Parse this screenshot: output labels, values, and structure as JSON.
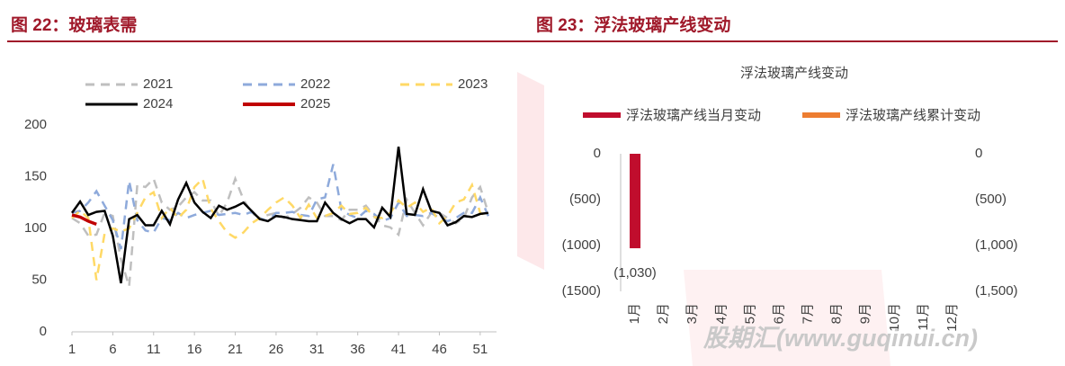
{
  "figure_captions": [
    "图 22：玻璃表需",
    "图 23：浮法玻璃产线变动"
  ],
  "watermark": "股期汇(www.guqinui.cn)",
  "chart_data": [
    {
      "type": "line",
      "legend": "top",
      "grid": false,
      "x": [
        1,
        2,
        3,
        4,
        5,
        6,
        7,
        8,
        9,
        10,
        11,
        12,
        13,
        14,
        15,
        16,
        17,
        18,
        19,
        20,
        21,
        22,
        23,
        24,
        25,
        26,
        27,
        28,
        29,
        30,
        31,
        32,
        33,
        34,
        35,
        36,
        37,
        38,
        39,
        40,
        41,
        42,
        43,
        44,
        45,
        46,
        47,
        48,
        49,
        50,
        51,
        52
      ],
      "xlim": [
        1,
        53
      ],
      "xticks": [
        1,
        6,
        11,
        16,
        21,
        26,
        31,
        36,
        41,
        46,
        51
      ],
      "ylim": [
        0,
        200
      ],
      "yticks": [
        0,
        50,
        100,
        150,
        200
      ],
      "series": [
        {
          "name": "2021",
          "color": "#bfbfbf",
          "style": "dashed",
          "values": [
            110,
            105,
            93,
            94,
            115,
            112,
            70,
            44,
            142,
            140,
            148,
            125,
            118,
            121,
            130,
            135,
            127,
            127,
            112,
            125,
            148,
            128,
            115,
            110,
            113,
            115,
            110,
            114,
            120,
            130,
            125,
            112,
            112,
            108,
            118,
            118,
            122,
            112,
            103,
            101,
            94,
            128,
            115,
            103,
            115,
            115,
            110,
            105,
            110,
            130,
            140,
            115
          ]
        },
        {
          "name": "2022",
          "color": "#8eaadb",
          "style": "dashed",
          "values": [
            115,
            117,
            125,
            136,
            122,
            108,
            80,
            146,
            108,
            98,
            96,
            110,
            108,
            115,
            110,
            113,
            115,
            117,
            113,
            114,
            115,
            113,
            116,
            110,
            107,
            115,
            115,
            116,
            113,
            112,
            128,
            130,
            162,
            118,
            113,
            110,
            117,
            114,
            107,
            110,
            125,
            112,
            113,
            112,
            115,
            110,
            107,
            110,
            115,
            115,
            130,
            112
          ]
        },
        {
          "name": "2023",
          "color": "#ffd966",
          "style": "dashed",
          "values": [
            110,
            117,
            110,
            50,
            95,
            100,
            97,
            100,
            115,
            130,
            135,
            110,
            120,
            110,
            118,
            140,
            148,
            119,
            107,
            96,
            91,
            96,
            105,
            110,
            118,
            125,
            130,
            122,
            110,
            123,
            110,
            112,
            115,
            122,
            114,
            115,
            120,
            111,
            110,
            115,
            127,
            120,
            125,
            116,
            120,
            105,
            112,
            125,
            128,
            142,
            115,
            112
          ]
        },
        {
          "name": "2024",
          "color": "#000000",
          "style": "solid",
          "values": [
            115,
            126,
            113,
            116,
            117,
            93,
            47,
            109,
            113,
            103,
            103,
            117,
            104,
            128,
            144,
            125,
            116,
            110,
            122,
            118,
            121,
            125,
            117,
            109,
            107,
            112,
            111,
            109,
            108,
            107,
            107,
            125,
            115,
            109,
            105,
            109,
            109,
            101,
            120,
            111,
            179,
            114,
            113,
            138,
            117,
            115,
            103,
            106,
            112,
            111,
            114,
            115
          ]
        },
        {
          "name": "2025",
          "color": "#c00000",
          "style": "solid",
          "values": [
            113,
            111,
            107,
            104,
            null,
            null,
            null,
            null,
            null,
            null,
            null,
            null,
            null,
            null,
            null,
            null,
            null,
            null,
            null,
            null,
            null,
            null,
            null,
            null,
            null,
            null,
            null,
            null,
            null,
            null,
            null,
            null,
            null,
            null,
            null,
            null,
            null,
            null,
            null,
            null,
            null,
            null,
            null,
            null,
            null,
            null,
            null,
            null,
            null,
            null,
            null,
            null
          ]
        }
      ]
    },
    {
      "type": "bar",
      "title": "浮法玻璃产线变动",
      "legend": "top",
      "categories": [
        "1月",
        "2月",
        "3月",
        "4月",
        "5月",
        "6月",
        "7月",
        "8月",
        "9月",
        "10月",
        "11月",
        "12月"
      ],
      "ylim": [
        -1500,
        0
      ],
      "yticks": [
        0,
        {
          "value": -500,
          "label": "(500)"
        },
        {
          "value": -1000,
          "label": "(1000)"
        },
        {
          "value": -1500,
          "label": "(1500)"
        }
      ],
      "y2lim": [
        -1500,
        0
      ],
      "y2ticks": [
        0,
        {
          "value": -500,
          "label": "(500)"
        },
        {
          "value": -1000,
          "label": "(1,000)"
        },
        {
          "value": -1500,
          "label": "(1,500)"
        }
      ],
      "series": [
        {
          "name": "浮法玻璃产线当月变动",
          "color": "#c00d2d",
          "values": [
            -1030,
            null,
            null,
            null,
            null,
            null,
            null,
            null,
            null,
            null,
            null,
            null
          ],
          "value_labels": [
            "(1,030)",
            null,
            null,
            null,
            null,
            null,
            null,
            null,
            null,
            null,
            null,
            null
          ]
        },
        {
          "name": "浮法玻璃产线累计变动",
          "color": "#ed7d31",
          "axis": "y2",
          "values": [
            null,
            null,
            null,
            null,
            null,
            null,
            null,
            null,
            null,
            null,
            null,
            null
          ]
        }
      ]
    }
  ]
}
